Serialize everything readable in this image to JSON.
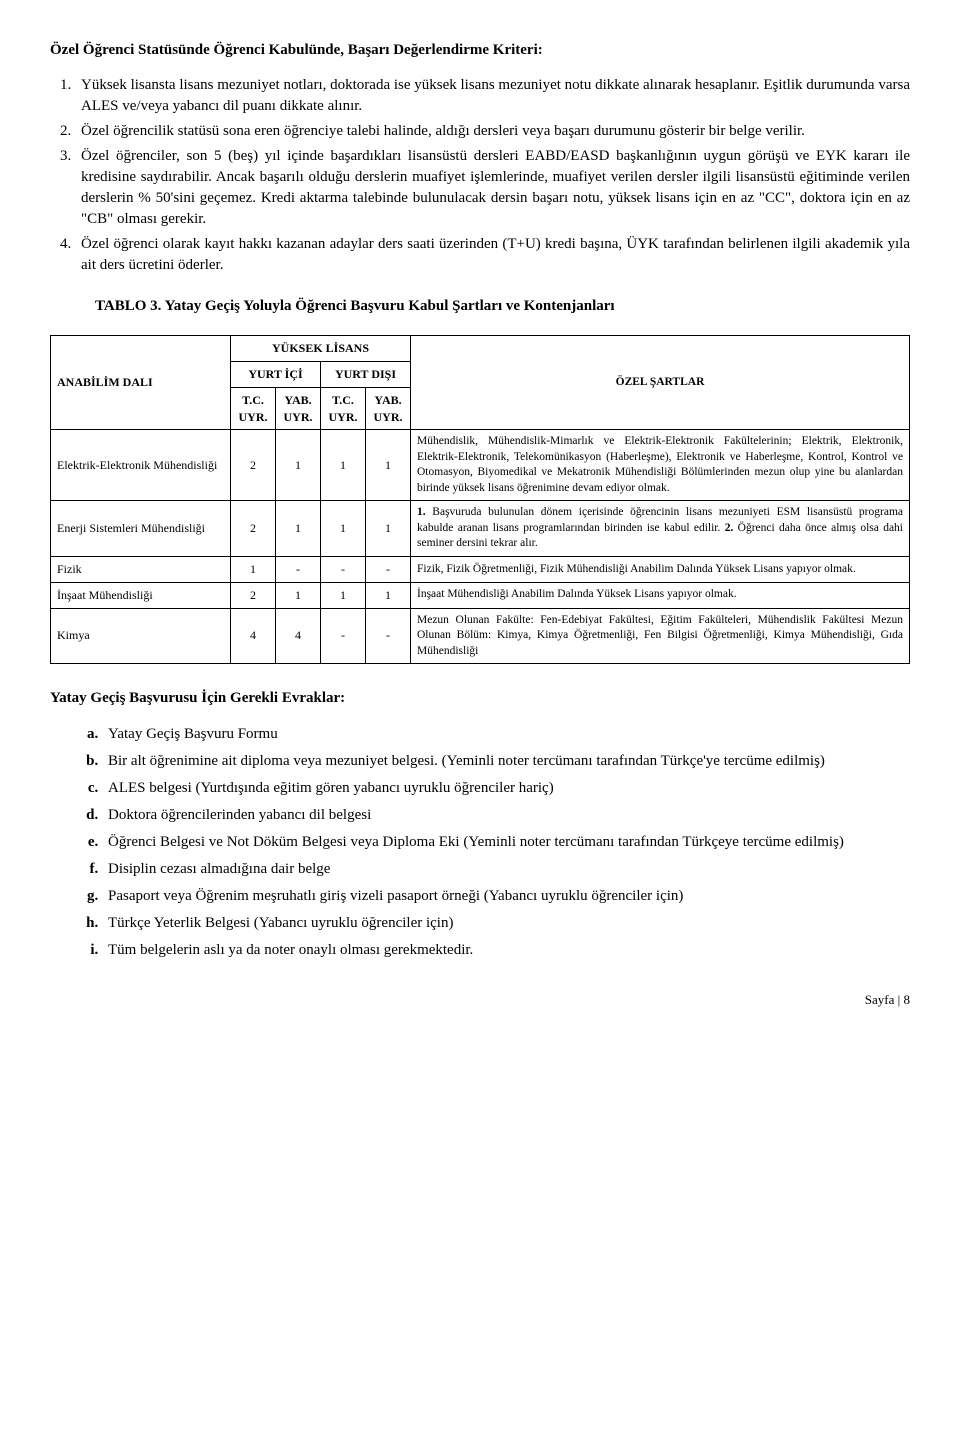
{
  "heading": "Özel Öğrenci Statüsünde Öğrenci Kabulünde, Başarı Değerlendirme Kriteri:",
  "top_list": [
    "Yüksek lisansta lisans mezuniyet notları, doktorada ise yüksek lisans mezuniyet notu dikkate alınarak hesaplanır. Eşitlik durumunda varsa ALES ve/veya yabancı dil puanı dikkate alınır.",
    "Özel öğrencilik statüsü sona eren öğrenciye talebi halinde, aldığı dersleri veya başarı durumunu gösterir bir belge verilir.",
    "Özel öğrenciler, son 5 (beş) yıl içinde başardıkları lisansüstü dersleri EABD/EASD başkanlığının uygun görüşü ve EYK kararı ile kredisine saydırabilir. Ancak başarılı olduğu derslerin muafiyet işlemlerinde, muafiyet verilen dersler ilgili lisansüstü eğitiminde verilen derslerin % 50'sini geçemez. Kredi aktarma talebinde bulunulacak dersin başarı notu, yüksek lisans için en az \"CC\", doktora için en az \"CB\" olması gerekir.",
    "Özel öğrenci olarak kayıt hakkı kazanan adaylar ders saati üzerinden (T+U) kredi başına, ÜYK tarafından belirlenen ilgili akademik yıla ait ders ücretini öderler."
  ],
  "table_caption": "TABLO 3. Yatay Geçiş Yoluyla Öğrenci Başvuru Kabul Şartları ve Kontenjanları",
  "tbl": {
    "h_dept": "ANABİLİM DALI",
    "h_yl": "YÜKSEK LİSANS",
    "h_yi": "YURT İÇİ",
    "h_yd": "YURT DIŞI",
    "h_cond": "ÖZEL ŞARTLAR",
    "h_tc": "T.C. UYR.",
    "h_yab": "YAB. UYR.",
    "rows": [
      {
        "dept": "Elektrik-Elektronik Mühendisliği",
        "v": [
          "2",
          "1",
          "1",
          "1"
        ],
        "cond": "Mühendislik, Mühendislik-Mimarlık ve Elektrik-Elektronik Fakültelerinin; Elektrik, Elektronik, Elektrik-Elektronik, Telekomünikasyon (Haberleşme), Elektronik ve Haberleşme, Kontrol, Kontrol ve Otomasyon, Biyomedikal ve Mekatronik Mühendisliği Bölümlerinden mezun olup yine bu alanlardan birinde yüksek lisans öğrenimine devam ediyor olmak."
      },
      {
        "dept": "Enerji Sistemleri Mühendisliği",
        "v": [
          "2",
          "1",
          "1",
          "1"
        ],
        "cond": "1. Başvuruda bulunulan dönem içerisinde öğrencinin lisans mezuniyeti ESM lisansüstü programa kabulde aranan lisans programlarından birinden ise kabul edilir. 2. Öğrenci daha önce almış olsa dahi seminer dersini tekrar alır."
      },
      {
        "dept": "Fizik",
        "v": [
          "1",
          "-",
          "-",
          "-"
        ],
        "cond": "Fizik, Fizik Öğretmenliği, Fizik Mühendisliği Anabilim Dalında Yüksek Lisans yapıyor olmak."
      },
      {
        "dept": "İnşaat Mühendisliği",
        "v": [
          "2",
          "1",
          "1",
          "1"
        ],
        "cond": "İnşaat Mühendisliği Anabilim Dalında Yüksek Lisans yapıyor olmak."
      },
      {
        "dept": "Kimya",
        "v": [
          "4",
          "4",
          "-",
          "-"
        ],
        "cond": "Mezun Olunan Fakülte: Fen-Edebiyat Fakültesi, Eğitim Fakülteleri, Mühendislik Fakültesi Mezun Olunan Bölüm: Kimya, Kimya Öğretmenliği, Fen Bilgisi Öğretmenliği, Kimya Mühendisliği, Gıda Mühendisliği"
      }
    ]
  },
  "evrak_title": "Yatay Geçiş Başvurusu İçin Gerekli Evraklar:",
  "evrak": [
    "Yatay Geçiş Başvuru Formu",
    "Bir alt öğrenimine ait diploma veya mezuniyet belgesi. (Yeminli noter tercümanı tarafından Türkçe'ye tercüme edilmiş)",
    "ALES belgesi (Yurtdışında eğitim gören yabancı uyruklu öğrenciler hariç)",
    "Doktora öğrencilerinden yabancı dil belgesi",
    "Öğrenci Belgesi ve Not Döküm Belgesi veya Diploma Eki (Yeminli noter tercümanı tarafından Türkçeye tercüme edilmiş)",
    "Disiplin cezası almadığına dair belge",
    "Pasaport veya Öğrenim meşruhatlı giriş vizeli pasaport örneği (Yabancı uyruklu öğrenciler için)",
    "Türkçe Yeterlik Belgesi (Yabancı uyruklu öğrenciler için)",
    "Tüm belgelerin aslı ya da noter onaylı olması gerekmektedir."
  ],
  "footer": "Sayfa | 8"
}
